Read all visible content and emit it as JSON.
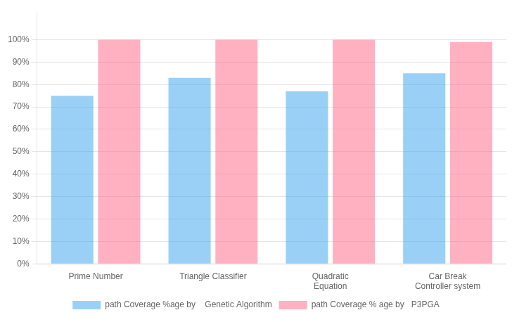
{
  "chart_data": {
    "type": "bar",
    "categories": [
      "Prime Number",
      "Triangle Classifier",
      "Quadratic\nEquation",
      "Car Break\nController system"
    ],
    "series": [
      {
        "name": "path Coverage %age by    Genetic Algorithm",
        "values": [
          75,
          83,
          77,
          85
        ]
      },
      {
        "name": "path Coverage % age by   P3PGA",
        "values": [
          100,
          100,
          100,
          99
        ]
      }
    ],
    "ylim": [
      0,
      112
    ],
    "yticks": [
      {
        "value": 0,
        "label": "0%"
      },
      {
        "value": 10,
        "label": "10%"
      },
      {
        "value": 20,
        "label": "20%"
      },
      {
        "value": 30,
        "label": "30%"
      },
      {
        "value": 40,
        "label": "40%"
      },
      {
        "value": 50,
        "label": "50%"
      },
      {
        "value": 60,
        "label": "60%"
      },
      {
        "value": 70,
        "label": "70%"
      },
      {
        "value": 80,
        "label": "80%"
      },
      {
        "value": 90,
        "label": "90%"
      },
      {
        "value": 100,
        "label": "100%"
      }
    ],
    "grid": true,
    "legend": "bottom"
  }
}
